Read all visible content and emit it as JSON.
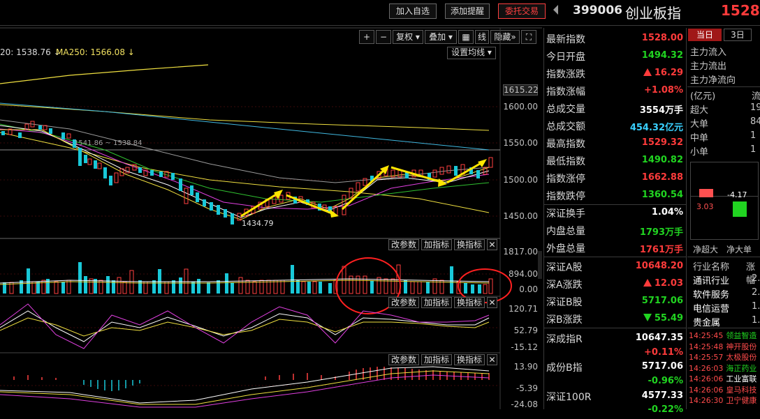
{
  "toolbar": {
    "add_watch": "加入自选",
    "add_alert": "添加提醒",
    "order": "委托交易"
  },
  "index": {
    "code": "399006",
    "name": "创业板指",
    "price": "1528."
  },
  "chart_toolbar": {
    "plus": "+",
    "minus": "−",
    "fuquan": "复权",
    "diejia": "叠加",
    "grid_icon": "grid-icon",
    "line": "线",
    "hide": "隐藏",
    "fullscreen_icon": "fullscreen-icon"
  },
  "ma_legend": {
    "ma20": "20: 1538.76 ↓",
    "ma250": "MA250: 1566.08 ↓"
  },
  "set_ma": "设置均线",
  "main_axis": {
    "top": "1615.22",
    "l1600": "1600.00",
    "l1550": "1550.00",
    "l1500": "1500.00",
    "l1450": "1450.00"
  },
  "annotations": {
    "low": "1434.79",
    "ma_note": "1541.86 ~ 1538.84"
  },
  "sub_buttons": {
    "params": "改参数",
    "add_indicator": "加指标",
    "switch_indicator": "换指标",
    "close_icon": "close-icon"
  },
  "vol_axis": {
    "top": "1817.00",
    "mid": "894.00",
    "zero": "0.00"
  },
  "kdj_axis": {
    "top": "120.71",
    "mid": "52.79",
    "bot": "-15.12"
  },
  "macd_axis": {
    "top": "13.90",
    "mid": "-5.39",
    "bot": "-24.08"
  },
  "quote": [
    {
      "k": "最新指数",
      "v": "1528.00",
      "c": "red"
    },
    {
      "k": "今日开盘",
      "v": "1494.32",
      "c": "green"
    },
    {
      "k": "指数涨跌",
      "v": "16.29",
      "c": "red",
      "arrow": "up"
    },
    {
      "k": "指数涨幅",
      "v": "+1.08%",
      "c": "red"
    },
    {
      "k": "总成交量",
      "v": "3554万手",
      "c": "white"
    },
    {
      "k": "总成交额",
      "v": "454.32亿元",
      "c": "cyan"
    },
    {
      "k": "最高指数",
      "v": "1529.32",
      "c": "red"
    },
    {
      "k": "最低指数",
      "v": "1490.82",
      "c": "green"
    },
    {
      "k": "指数涨停",
      "v": "1662.88",
      "c": "red"
    },
    {
      "k": "指数跌停",
      "v": "1360.54",
      "c": "green"
    },
    {
      "k": "深证换手",
      "v": "1.04%",
      "c": "white"
    },
    {
      "k": "内盘总量",
      "v": "1793万手",
      "c": "green"
    },
    {
      "k": "外盘总量",
      "v": "1761万手",
      "c": "red"
    },
    {
      "k": "深证A股",
      "v": "10648.20",
      "c": "red"
    },
    {
      "k": "深A涨跌",
      "v": "12.03",
      "c": "red",
      "arrow": "up"
    },
    {
      "k": "深证B股",
      "v": "5717.06",
      "c": "green"
    },
    {
      "k": "深B涨跌",
      "v": "55.49",
      "c": "green",
      "arrow": "down"
    },
    {
      "k": "深成指R",
      "v": "10647.35",
      "c": "white"
    },
    {
      "k": "",
      "v": "+0.11%",
      "c": "red"
    },
    {
      "k": "成份B指",
      "v": "5717.06",
      "c": "white"
    },
    {
      "k": "",
      "v": "-0.96%",
      "c": "green"
    },
    {
      "k": "深证100R",
      "v": "4577.33",
      "c": "white"
    },
    {
      "k": "",
      "v": "-0.22%",
      "c": "green"
    }
  ],
  "fund": {
    "tab_today": "当日",
    "tab_3d": "3日",
    "in": "主力流入",
    "out": "主力流出",
    "net": "主力净流向",
    "unit": "(亿元)",
    "unit_right": "流",
    "rows": [
      {
        "k": "超大",
        "v": "19"
      },
      {
        "k": "大单",
        "v": "84"
      },
      {
        "k": "中单",
        "v": "1"
      },
      {
        "k": "小单",
        "v": "1"
      }
    ],
    "bar1": "3.03",
    "bar2": "-4.17",
    "bar_labels": [
      "净超大",
      "净大单"
    ]
  },
  "industry": {
    "h1": "行业名称",
    "h2": "涨幅",
    "rows": [
      {
        "n": "通讯行业",
        "v": "2."
      },
      {
        "n": "软件服务",
        "v": "2."
      },
      {
        "n": "电信运营",
        "v": "1."
      },
      {
        "n": "贵金属",
        "v": "1."
      }
    ]
  },
  "news": [
    {
      "t": "14:25:45",
      "n": "领益智造",
      "c": "#21d421"
    },
    {
      "t": "14:25:48",
      "n": "神开股份",
      "c": "#ff4b4b"
    },
    {
      "t": "14:25:57",
      "n": "太极股份",
      "c": "#ff4b4b"
    },
    {
      "t": "14:26:03",
      "n": "海正药业",
      "c": "#21d421"
    },
    {
      "t": "14:26:06",
      "n": "工业富联",
      "c": "#ffffff"
    },
    {
      "t": "14:26:06",
      "n": "皇马科技",
      "c": "#ff4b4b"
    },
    {
      "t": "14:26:30",
      "n": "卫宁健康",
      "c": "#ff4b4b"
    }
  ]
}
